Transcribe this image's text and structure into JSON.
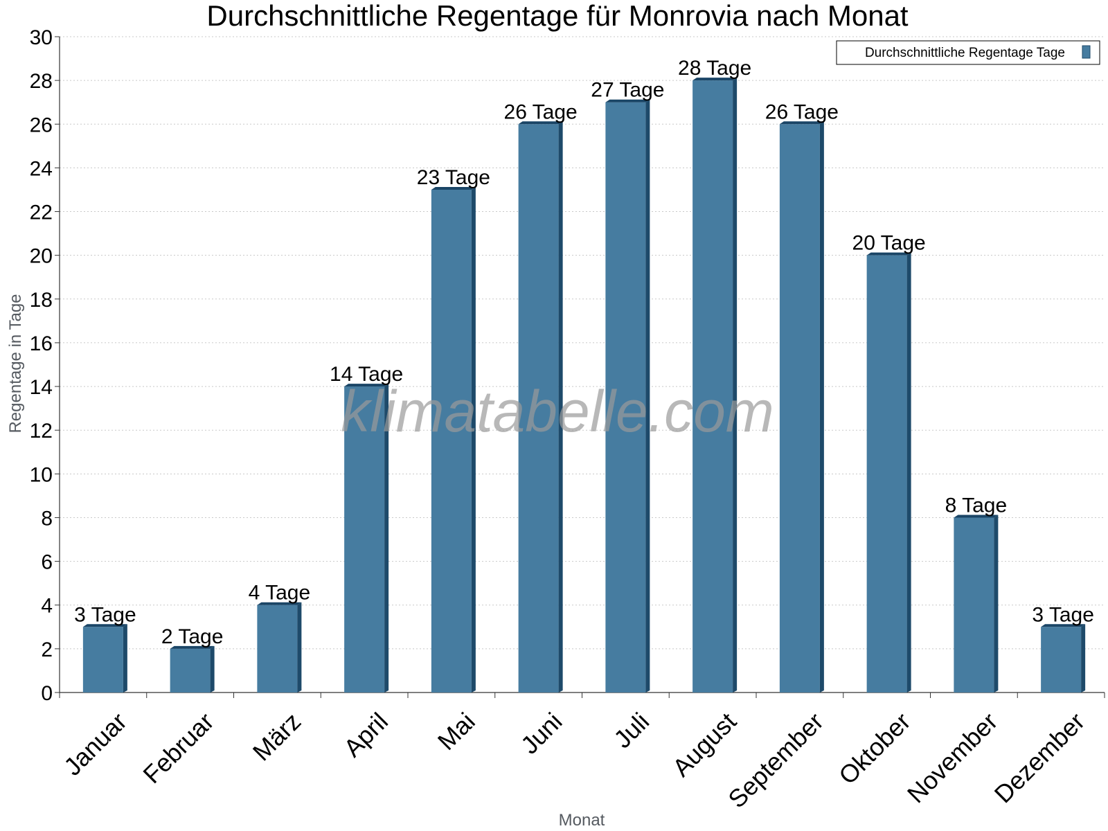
{
  "chart_data": {
    "type": "bar",
    "title": "Durchschnittliche Regentage für Monrovia nach Monat",
    "xlabel": "Monat",
    "ylabel": "Regentage in Tage",
    "ylim": [
      0,
      30
    ],
    "yticks": [
      0,
      2,
      4,
      6,
      8,
      10,
      12,
      14,
      16,
      18,
      20,
      22,
      24,
      26,
      28,
      30
    ],
    "grid": true,
    "legend_position": "top-right",
    "categories": [
      "Januar",
      "Februar",
      "März",
      "April",
      "Mai",
      "Juni",
      "Juli",
      "August",
      "September",
      "Oktober",
      "November",
      "Dezember"
    ],
    "series": [
      {
        "name": "Durchschnittliche Regentage Tage",
        "values": [
          3,
          2,
          4,
          14,
          23,
          26,
          27,
          28,
          26,
          20,
          8,
          3
        ],
        "labels": [
          "3 Tage",
          "2 Tage",
          "4 Tage",
          "14 Tage",
          "23 Tage",
          "26 Tage",
          "27 Tage",
          "28 Tage",
          "26 Tage",
          "20 Tage",
          "8 Tage",
          "3 Tage"
        ],
        "color": "#467ca0"
      }
    ]
  },
  "colors": {
    "bar_front": "#467ca0",
    "bar_side": "#1e4a6a",
    "bar_top": "#1a4566",
    "grid": "#c8c8c8"
  },
  "watermark": "klimatabelle.com"
}
